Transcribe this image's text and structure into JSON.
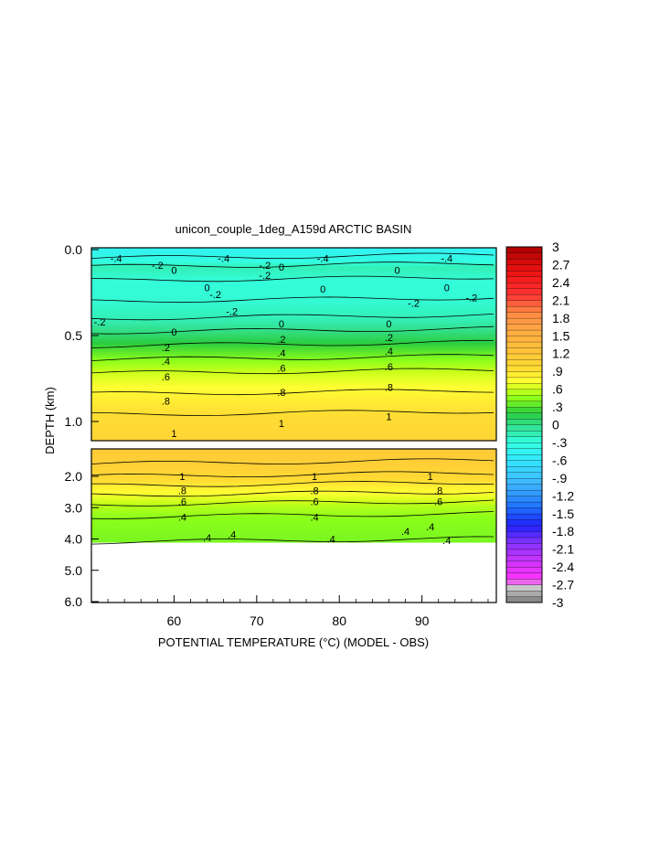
{
  "chart_data": {
    "type": "heatmap",
    "title": "unicon_couple_1deg_A159d ARCTIC BASIN",
    "xlabel": "POTENTIAL TEMPERATURE (°C) (MODEL - OBS)",
    "ylabel": "DEPTH (km)",
    "xlim": [
      50,
      99
    ],
    "x_ticks": [
      "60",
      "70",
      "80",
      "90"
    ],
    "upper_panel": {
      "ylim": [
        0.0,
        1.12
      ],
      "y_ticks": [
        "0.0",
        "0.5",
        "1.0"
      ],
      "depth_bands": [
        {
          "depth": 0.0,
          "value": -0.45
        },
        {
          "depth": 0.05,
          "value": -0.35
        },
        {
          "depth": 0.1,
          "value": -0.15
        },
        {
          "depth": 0.18,
          "value": -0.28
        },
        {
          "depth": 0.3,
          "value": -0.25
        },
        {
          "depth": 0.4,
          "value": -0.15
        },
        {
          "depth": 0.48,
          "value": 0.05
        },
        {
          "depth": 0.56,
          "value": 0.25
        },
        {
          "depth": 0.64,
          "value": 0.45
        },
        {
          "depth": 0.72,
          "value": 0.62
        },
        {
          "depth": 0.84,
          "value": 0.82
        },
        {
          "depth": 0.96,
          "value": 0.95
        },
        {
          "depth": 1.12,
          "value": 1.05
        }
      ],
      "contour_labels": [
        {
          "text": "-.4",
          "x": 53,
          "depth": 0.05
        },
        {
          "text": "-.4",
          "x": 66,
          "depth": 0.05
        },
        {
          "text": "-.4",
          "x": 78,
          "depth": 0.05
        },
        {
          "text": "-.4",
          "x": 93,
          "depth": 0.05
        },
        {
          "text": "-.2",
          "x": 58,
          "depth": 0.09
        },
        {
          "text": "0",
          "x": 60,
          "depth": 0.12
        },
        {
          "text": "-.2",
          "x": 71,
          "depth": 0.09
        },
        {
          "text": "0",
          "x": 73,
          "depth": 0.1
        },
        {
          "text": "-.2",
          "x": 71,
          "depth": 0.15
        },
        {
          "text": "0",
          "x": 87,
          "depth": 0.12
        },
        {
          "text": "0",
          "x": 64,
          "depth": 0.22
        },
        {
          "text": "-.2",
          "x": 65,
          "depth": 0.26
        },
        {
          "text": "0",
          "x": 78,
          "depth": 0.23
        },
        {
          "text": "0",
          "x": 93,
          "depth": 0.22
        },
        {
          "text": "-.2",
          "x": 96,
          "depth": 0.28
        },
        {
          "text": "-.2",
          "x": 67,
          "depth": 0.36
        },
        {
          "text": "-.2",
          "x": 89,
          "depth": 0.31
        },
        {
          "text": "-.2",
          "x": 51,
          "depth": 0.42
        },
        {
          "text": "0",
          "x": 60,
          "depth": 0.48
        },
        {
          "text": "0",
          "x": 73,
          "depth": 0.43
        },
        {
          "text": "0",
          "x": 86,
          "depth": 0.43
        },
        {
          "text": ".2",
          "x": 59,
          "depth": 0.57
        },
        {
          "text": ".2",
          "x": 73,
          "depth": 0.52
        },
        {
          "text": ".2",
          "x": 86,
          "depth": 0.51
        },
        {
          "text": ".4",
          "x": 59,
          "depth": 0.65
        },
        {
          "text": ".4",
          "x": 73,
          "depth": 0.6
        },
        {
          "text": ".4",
          "x": 86,
          "depth": 0.59
        },
        {
          "text": ".6",
          "x": 59,
          "depth": 0.74
        },
        {
          "text": ".6",
          "x": 73,
          "depth": 0.69
        },
        {
          "text": ".6",
          "x": 86,
          "depth": 0.68
        },
        {
          "text": ".8",
          "x": 59,
          "depth": 0.88
        },
        {
          "text": ".8",
          "x": 73,
          "depth": 0.83
        },
        {
          "text": ".8",
          "x": 86,
          "depth": 0.8
        },
        {
          "text": "1",
          "x": 60,
          "depth": 1.07
        },
        {
          "text": "1",
          "x": 73,
          "depth": 1.01
        },
        {
          "text": "1",
          "x": 86,
          "depth": 0.97
        }
      ]
    },
    "lower_panel": {
      "ylim": [
        1.12,
        6.0
      ],
      "y_ticks": [
        "2.0",
        "3.0",
        "4.0",
        "5.0",
        "6.0"
      ],
      "data_bottom_depth": 4.1,
      "depth_bands": [
        {
          "depth": 1.12,
          "value": 1.15
        },
        {
          "depth": 1.6,
          "value": 1.1
        },
        {
          "depth": 2.0,
          "value": 1.0
        },
        {
          "depth": 2.3,
          "value": 0.85
        },
        {
          "depth": 2.6,
          "value": 0.7
        },
        {
          "depth": 2.9,
          "value": 0.55
        },
        {
          "depth": 3.3,
          "value": 0.45
        },
        {
          "depth": 4.1,
          "value": 0.4
        }
      ],
      "contour_labels": [
        {
          "text": "1",
          "x": 61,
          "depth": 2.0
        },
        {
          "text": "1",
          "x": 77,
          "depth": 2.0
        },
        {
          "text": "1",
          "x": 91,
          "depth": 2.0
        },
        {
          "text": ".8",
          "x": 61,
          "depth": 2.45
        },
        {
          "text": ".8",
          "x": 77,
          "depth": 2.45
        },
        {
          "text": ".8",
          "x": 92,
          "depth": 2.45
        },
        {
          "text": ".6",
          "x": 61,
          "depth": 2.8
        },
        {
          "text": ".6",
          "x": 77,
          "depth": 2.8
        },
        {
          "text": ".6",
          "x": 92,
          "depth": 2.8
        },
        {
          "text": ".4",
          "x": 61,
          "depth": 3.3
        },
        {
          "text": ".4",
          "x": 77,
          "depth": 3.3
        },
        {
          "text": ".4",
          "x": 91,
          "depth": 3.6
        },
        {
          "text": ".4",
          "x": 88,
          "depth": 3.75
        },
        {
          "text": ".4",
          "x": 67,
          "depth": 3.85
        },
        {
          "text": ".4",
          "x": 64,
          "depth": 3.95
        },
        {
          "text": ".4",
          "x": 79,
          "depth": 4.0
        },
        {
          "text": ".4",
          "x": 93,
          "depth": 4.05
        }
      ]
    },
    "colorbar": {
      "vmin": -3.0,
      "vmax": 3.0,
      "step": 0.1,
      "tick_labels": [
        "3",
        "2.7",
        "2.4",
        "2.1",
        "1.8",
        "1.5",
        "1.2",
        ".9",
        ".6",
        ".3",
        "0",
        "-.3",
        "-.6",
        "-.9",
        "-1.2",
        "-1.5",
        "-1.8",
        "-2.1",
        "-2.4",
        "-2.7",
        "-3"
      ],
      "color_stops": [
        {
          "value": -3.0,
          "color": "#7a7a7a"
        },
        {
          "value": -2.75,
          "color": "#c8c8c8"
        },
        {
          "value": -2.6,
          "color": "#ff33ff"
        },
        {
          "value": -2.3,
          "color": "#cc33ff"
        },
        {
          "value": -2.0,
          "color": "#8833ff"
        },
        {
          "value": -1.7,
          "color": "#2222ff"
        },
        {
          "value": -1.4,
          "color": "#1e6fff"
        },
        {
          "value": -1.0,
          "color": "#3fb6ff"
        },
        {
          "value": -0.6,
          "color": "#33e6ff"
        },
        {
          "value": -0.3,
          "color": "#33ffe0"
        },
        {
          "value": 0.0,
          "color": "#33e08c"
        },
        {
          "value": 0.2,
          "color": "#2acd3f"
        },
        {
          "value": 0.45,
          "color": "#8cff1a"
        },
        {
          "value": 0.6,
          "color": "#ccff1a"
        },
        {
          "value": 0.75,
          "color": "#ffff33"
        },
        {
          "value": 0.95,
          "color": "#ffdd33"
        },
        {
          "value": 1.2,
          "color": "#ffc637"
        },
        {
          "value": 1.6,
          "color": "#ffaa44"
        },
        {
          "value": 1.9,
          "color": "#ff8844"
        },
        {
          "value": 2.2,
          "color": "#ff3333"
        },
        {
          "value": 2.6,
          "color": "#ee1111"
        },
        {
          "value": 3.0,
          "color": "#aa0000"
        }
      ]
    },
    "grid": false
  }
}
